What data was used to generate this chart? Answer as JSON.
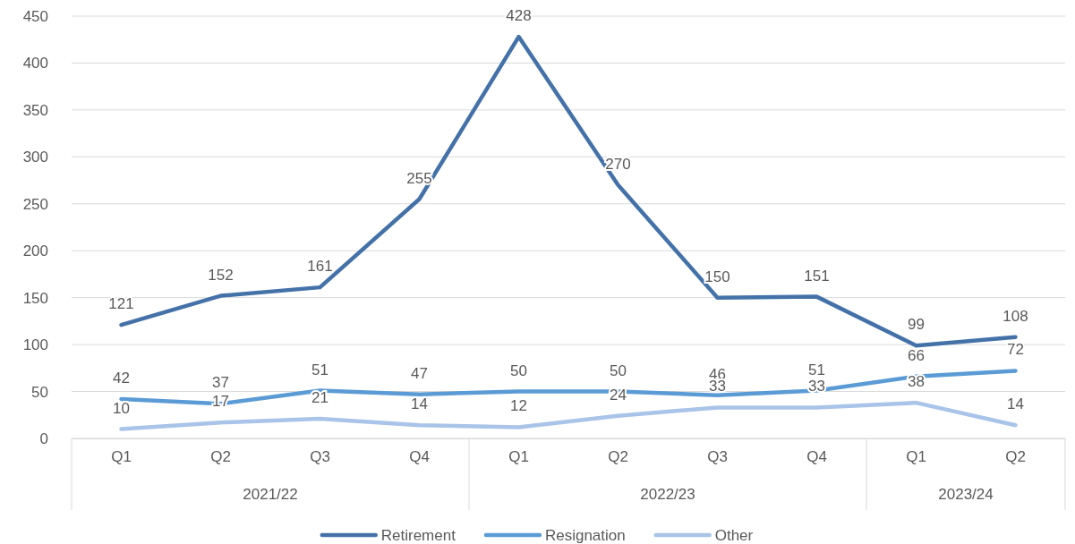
{
  "chart_data": {
    "type": "line",
    "categories": [
      "Q1",
      "Q2",
      "Q3",
      "Q4",
      "Q1",
      "Q2",
      "Q3",
      "Q4",
      "Q1",
      "Q2"
    ],
    "series": [
      {
        "name": "Retirement",
        "color": "#4472a8",
        "values": [
          121,
          152,
          161,
          255,
          428,
          270,
          150,
          151,
          99,
          108
        ]
      },
      {
        "name": "Resignation",
        "color": "#5b9bd5",
        "values": [
          42,
          37,
          51,
          47,
          50,
          50,
          46,
          51,
          66,
          72
        ]
      },
      {
        "name": "Other",
        "color": "#a9c4e8",
        "values": [
          10,
          17,
          21,
          14,
          12,
          24,
          33,
          33,
          38,
          14
        ]
      }
    ],
    "annotations": [
      "2021/22",
      "2022/23",
      "2023/24"
    ],
    "ylim": [
      0,
      450
    ],
    "yticks": [
      0,
      50,
      100,
      150,
      200,
      250,
      300,
      350,
      400,
      450
    ],
    "grid": "y",
    "legend": "bottom",
    "marker": "none",
    "line_style": "solid",
    "data_labels": true
  }
}
